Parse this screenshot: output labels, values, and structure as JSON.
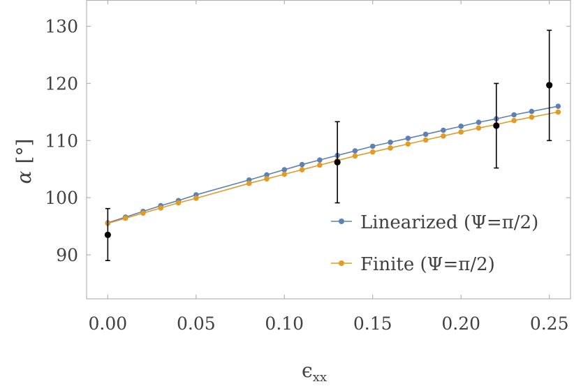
{
  "chart_data": {
    "type": "scatter",
    "title": "",
    "xlabel": "ϵ",
    "xlabel_sub": "xx",
    "ylabel_symbol": "α",
    "ylabel_unit": "[°]",
    "xlim": [
      -0.012,
      0.262
    ],
    "ylim": [
      82.3,
      134.6
    ],
    "xticks": [
      0.0,
      0.05,
      0.1,
      0.15,
      0.2,
      0.25
    ],
    "xtick_labels": [
      "0.00",
      "0.05",
      "0.10",
      "0.15",
      "0.20",
      "0.25"
    ],
    "yticks": [
      90,
      100,
      110,
      120,
      130
    ],
    "ytick_labels": [
      "90",
      "100",
      "110",
      "120",
      "130"
    ],
    "grid": false,
    "legend_position": "lower-right",
    "series": [
      {
        "name": "Linearized (Ψ=π/2)",
        "color": "#5e81b5",
        "x": [
          0.0,
          0.01,
          0.02,
          0.03,
          0.04,
          0.05,
          0.08,
          0.09,
          0.1,
          0.11,
          0.12,
          0.13,
          0.14,
          0.15,
          0.16,
          0.17,
          0.18,
          0.19,
          0.2,
          0.21,
          0.22,
          0.23,
          0.24,
          0.255
        ],
        "y": [
          95.6,
          96.6,
          97.6,
          98.6,
          99.5,
          100.5,
          103.1,
          104.0,
          104.9,
          105.8,
          106.6,
          107.4,
          108.2,
          109.0,
          109.7,
          110.4,
          111.1,
          111.8,
          112.5,
          113.2,
          113.8,
          114.5,
          115.1,
          116.0
        ]
      },
      {
        "name": "Finite (Ψ=π/2)",
        "color": "#e19c24",
        "x": [
          0.0,
          0.01,
          0.02,
          0.03,
          0.04,
          0.05,
          0.08,
          0.09,
          0.1,
          0.11,
          0.12,
          0.13,
          0.14,
          0.15,
          0.16,
          0.17,
          0.18,
          0.19,
          0.2,
          0.21,
          0.22,
          0.23,
          0.24,
          0.255
        ],
        "y": [
          95.5,
          96.4,
          97.3,
          98.2,
          99.1,
          99.9,
          102.5,
          103.3,
          104.1,
          104.9,
          105.7,
          106.5,
          107.3,
          108.0,
          108.7,
          109.4,
          110.1,
          110.8,
          111.5,
          112.2,
          112.8,
          113.5,
          114.1,
          115.0
        ]
      }
    ],
    "measurements": {
      "color": "#000000",
      "points": [
        {
          "x": 0.0,
          "y": 93.5,
          "y_low": 89.0,
          "y_high": 98.1
        },
        {
          "x": 0.13,
          "y": 106.2,
          "y_low": 99.1,
          "y_high": 113.3
        },
        {
          "x": 0.22,
          "y": 112.6,
          "y_low": 105.2,
          "y_high": 120.0
        },
        {
          "x": 0.25,
          "y": 119.7,
          "y_low": 110.0,
          "y_high": 129.3
        }
      ]
    }
  }
}
